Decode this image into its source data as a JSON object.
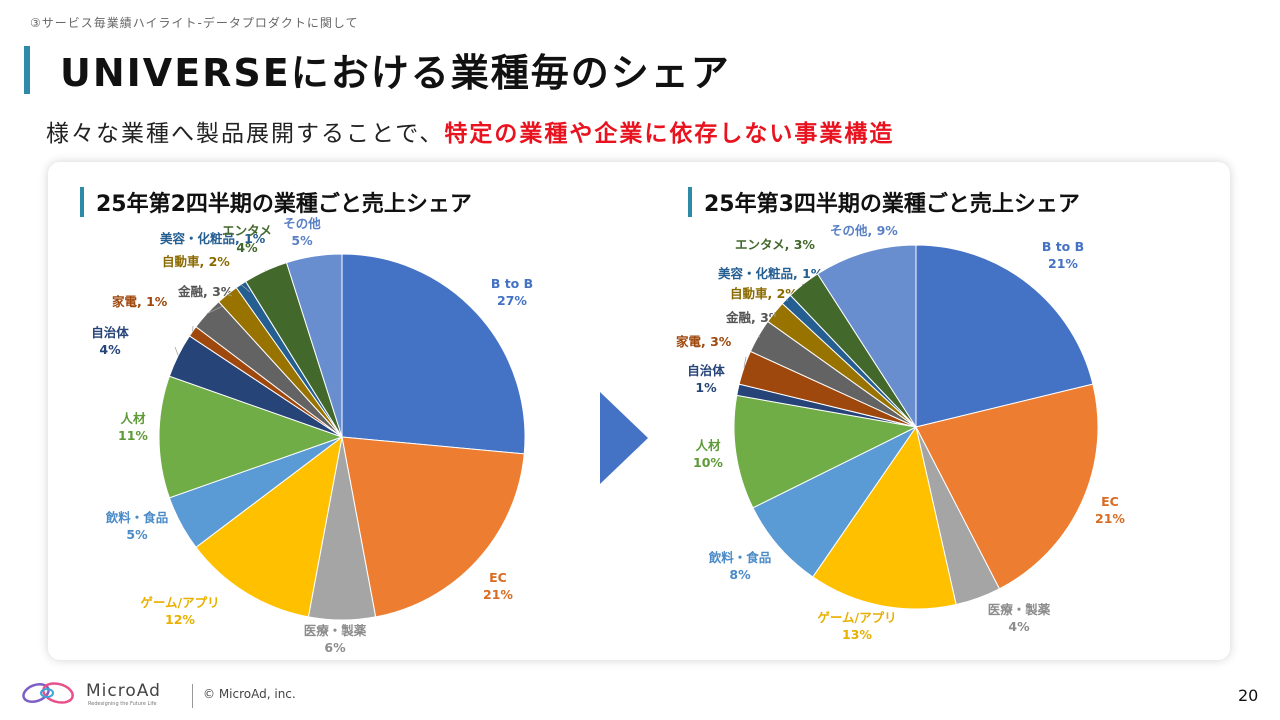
{
  "header": {
    "breadcrumb": "③サービス毎業績ハイライト-データプロダクトに関して",
    "title": "UNIVERSEにおける業種毎のシェア",
    "subtitle_plain": "様々な業種へ製品展開することで、",
    "subtitle_emph": "特定の業種や企業に依存しない事業構造"
  },
  "colors": {
    "accent": "#2e8aa8",
    "emphasis": "#e8131f",
    "arrow": "#4472c4"
  },
  "footer": {
    "brand": "MicroAd",
    "tagline": "Redesigning the Future Life",
    "copyright": "© MicroAd, inc.",
    "page_number": "20"
  },
  "chart_data": [
    {
      "type": "pie",
      "title": "25年第2四半期の業種ごと売上シェア",
      "slices": [
        {
          "name": "B to B",
          "value": 27,
          "label": "27%",
          "color": "#4472c4",
          "label_color": "#4472c4"
        },
        {
          "name": "EC",
          "value": 21,
          "label": "21%",
          "color": "#ed7d31",
          "label_color": "#d96c22"
        },
        {
          "name": "医療・製薬",
          "value": 6,
          "label": "6%",
          "color": "#a5a5a5",
          "label_color": "#8c8c8c"
        },
        {
          "name": "ゲーム/アプリ",
          "value": 12,
          "label": "12%",
          "color": "#ffc000",
          "label_color": "#e8b000"
        },
        {
          "name": "飲料・食品",
          "value": 5,
          "label": "5%",
          "color": "#5b9bd5",
          "label_color": "#4a8bc8"
        },
        {
          "name": "人材",
          "value": 11,
          "label": "11%",
          "color": "#70ad47",
          "label_color": "#5e9a36"
        },
        {
          "name": "自治体",
          "value": 4,
          "label": "4%",
          "color": "#264478",
          "label_color": "#264478"
        },
        {
          "name": "家電",
          "value": 1,
          "label": "1%",
          "color": "#9e480e",
          "label_color": "#9e480e"
        },
        {
          "name": "金融",
          "value": 3,
          "label": "3%",
          "color": "#636363",
          "label_color": "#555555"
        },
        {
          "name": "自動車",
          "value": 2,
          "label": "2%",
          "color": "#997300",
          "label_color": "#8a6a00"
        },
        {
          "name": "美容・化粧品",
          "value": 1,
          "label": "1%",
          "color": "#255e91",
          "label_color": "#255e91"
        },
        {
          "name": "エンタメ",
          "value": 4,
          "label": "4%",
          "color": "#43682b",
          "label_color": "#43682b"
        },
        {
          "name": "その他",
          "value": 5,
          "label": "5%",
          "color": "#698ed0",
          "label_color": "#5a80c4"
        }
      ]
    },
    {
      "type": "pie",
      "title": "25年第3四半期の業種ごと売上シェア",
      "slices": [
        {
          "name": "B to B",
          "value": 21,
          "label": "21%",
          "color": "#4472c4",
          "label_color": "#4472c4"
        },
        {
          "name": "EC",
          "value": 21,
          "label": "21%",
          "color": "#ed7d31",
          "label_color": "#d96c22"
        },
        {
          "name": "医療・製薬",
          "value": 4,
          "label": "4%",
          "color": "#a5a5a5",
          "label_color": "#8c8c8c"
        },
        {
          "name": "ゲーム/アプリ",
          "value": 13,
          "label": "13%",
          "color": "#ffc000",
          "label_color": "#e8b000"
        },
        {
          "name": "飲料・食品",
          "value": 8,
          "label": "8%",
          "color": "#5b9bd5",
          "label_color": "#4a8bc8"
        },
        {
          "name": "人材",
          "value": 10,
          "label": "10%",
          "color": "#70ad47",
          "label_color": "#5e9a36"
        },
        {
          "name": "自治体",
          "value": 1,
          "label": "1%",
          "color": "#264478",
          "label_color": "#264478"
        },
        {
          "name": "家電",
          "value": 3,
          "label": "3%",
          "color": "#9e480e",
          "label_color": "#9e480e"
        },
        {
          "name": "金融",
          "value": 3,
          "label": "3%",
          "color": "#636363",
          "label_color": "#555555"
        },
        {
          "name": "自動車",
          "value": 2,
          "label": "2%",
          "color": "#997300",
          "label_color": "#8a6a00"
        },
        {
          "name": "美容・化粧品",
          "value": 1,
          "label": "1%",
          "color": "#255e91",
          "label_color": "#255e91"
        },
        {
          "name": "エンタメ",
          "value": 3,
          "label": "3%",
          "color": "#43682b",
          "label_color": "#43682b"
        },
        {
          "name": "その他",
          "value": 9,
          "label": "9%",
          "color": "#698ed0",
          "label_color": "#5a80c4"
        }
      ]
    }
  ]
}
